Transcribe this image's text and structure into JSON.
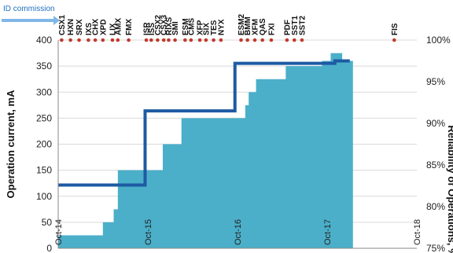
{
  "chart_data": {
    "type": "area",
    "ylabel": "Operation current, mA",
    "y2label": "Reliability of Operations, %",
    "ylim": [
      0,
      400
    ],
    "y2lim": [
      75,
      100
    ],
    "yticks": [
      "0",
      "50",
      "100",
      "150",
      "200",
      "250",
      "300",
      "350",
      "400"
    ],
    "y2ticks": [
      "75%",
      "80%",
      "85%",
      "90%",
      "95%",
      "100%"
    ],
    "xlim": [
      "2014-10-01",
      "2018-10-01"
    ],
    "xticks": [
      {
        "label": "Oct-14",
        "date": "2014-10-01"
      },
      {
        "label": "Oct-15",
        "date": "2015-10-01"
      },
      {
        "label": "Oct-16",
        "date": "2016-10-01"
      },
      {
        "label": "Oct-17",
        "date": "2017-10-01"
      },
      {
        "label": "Oct-18",
        "date": "2018-10-01"
      }
    ],
    "grid": true,
    "marker_legend": "ID commission",
    "series": [
      {
        "kind": "area",
        "axis": "left",
        "color": "#4bafc9",
        "x": [
          "2014-10-01",
          "2015-04-01",
          "2015-05-15",
          "2015-06-01",
          "2015-11-01",
          "2015-12-01",
          "2016-02-15",
          "2016-11-01",
          "2016-11-15",
          "2016-12-15",
          "2017-04-15",
          "2017-06-01",
          "2017-09-10",
          "2017-10-15",
          "2017-12-01"
        ],
        "y": [
          25,
          50,
          75,
          150,
          150,
          200,
          250,
          275,
          300,
          325,
          350,
          350,
          360,
          375,
          360
        ]
      },
      {
        "kind": "step-line",
        "axis": "right",
        "color": "#1e5aa3",
        "x": [
          "2014-10-01",
          "2015-09-20",
          "2015-09-20",
          "2016-09-20",
          "2016-09-20",
          "2017-11-01",
          "2017-11-01",
          "2018-01-01"
        ],
        "y": [
          82.6,
          82.6,
          91.5,
          91.5,
          97.2,
          97.2,
          97.5,
          97.5
        ]
      }
    ],
    "events": [
      {
        "label": "CSX1",
        "date": "2014-10-15"
      },
      {
        "label": "HXN",
        "date": "2014-11-20"
      },
      {
        "label": "SRX",
        "date": "2014-12-25"
      },
      {
        "label": "IXS",
        "date": "2015-02-01"
      },
      {
        "label": "CHX",
        "date": "2015-03-01"
      },
      {
        "label": "XPD",
        "date": "2015-04-01"
      },
      {
        "label": "LIX",
        "date": "2015-05-10"
      },
      {
        "label": "AMX",
        "date": "2015-06-01"
      },
      {
        "label": "FMX",
        "date": "2015-07-15"
      },
      {
        "label": "ISR",
        "date": "2015-09-25"
      },
      {
        "label": "ISS",
        "date": "2015-10-15"
      },
      {
        "label": "CSX2",
        "date": "2015-11-10"
      },
      {
        "label": "CSX3",
        "date": "2015-12-05"
      },
      {
        "label": "RIXS",
        "date": "2015-12-25"
      },
      {
        "label": "SMI",
        "date": "2016-01-20"
      },
      {
        "label": "ESM",
        "date": "2016-03-01"
      },
      {
        "label": "CMS",
        "date": "2016-03-25"
      },
      {
        "label": "XFP",
        "date": "2016-04-30"
      },
      {
        "label": "SIX",
        "date": "2016-05-25"
      },
      {
        "label": "TES",
        "date": "2016-06-25"
      },
      {
        "label": "NYX",
        "date": "2016-07-25"
      },
      {
        "label": "ESM2",
        "date": "2016-10-15"
      },
      {
        "label": "BMM",
        "date": "2016-11-10"
      },
      {
        "label": "XFM",
        "date": "2016-12-10"
      },
      {
        "label": "QAS",
        "date": "2017-01-10"
      },
      {
        "label": "FXI",
        "date": "2017-02-15"
      },
      {
        "label": "PDF",
        "date": "2017-04-20"
      },
      {
        "label": "SST1",
        "date": "2017-05-20"
      },
      {
        "label": "SST2",
        "date": "2017-06-20"
      },
      {
        "label": "FIS",
        "date": "2018-07-01"
      }
    ]
  }
}
